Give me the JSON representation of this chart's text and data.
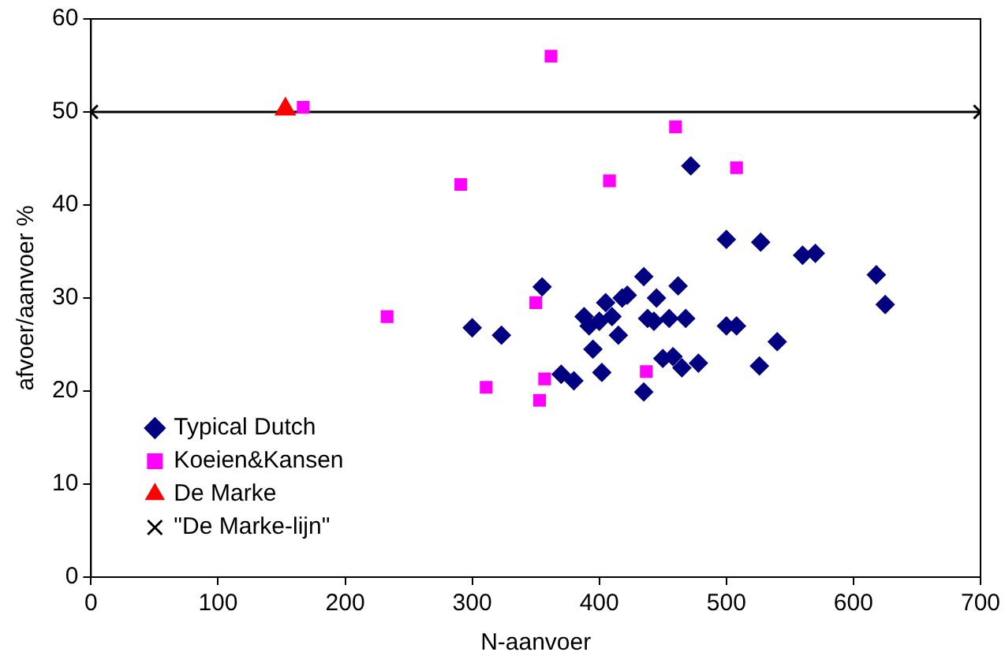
{
  "chart_data": {
    "type": "scatter",
    "xlabel": "N-aanvoer",
    "ylabel": "afvoer/aanvoer %",
    "xlim": [
      0,
      700
    ],
    "xticks": [
      0,
      100,
      200,
      300,
      400,
      500,
      600,
      700
    ],
    "ylim": [
      0,
      60
    ],
    "yticks": [
      0,
      10,
      20,
      30,
      40,
      50,
      60
    ],
    "grid": false,
    "legend": "bottom left",
    "series": [
      {
        "name": "Typical Dutch",
        "color": "#000080",
        "marker": "diamond",
        "x": [
          300,
          323,
          355,
          370,
          380,
          388,
          392,
          395,
          400,
          402,
          405,
          410,
          415,
          418,
          422,
          435,
          435,
          438,
          443,
          445,
          450,
          455,
          458,
          462,
          465,
          468,
          472,
          478,
          500,
          500,
          508,
          527,
          526,
          540,
          560,
          570,
          618,
          625
        ],
        "values": [
          26.8,
          26,
          31.2,
          21.8,
          21.1,
          28,
          27,
          24.5,
          27.5,
          22,
          29.5,
          28,
          26,
          30,
          30.3,
          32.3,
          19.9,
          27.8,
          27.5,
          30,
          23.5,
          27.8,
          23.7,
          31.3,
          22.5,
          27.8,
          44.2,
          23,
          36.3,
          27,
          27,
          36,
          22.7,
          25.3,
          34.6,
          34.8,
          32.5,
          29.3
        ]
      },
      {
        "name": "Koeien&Kansen",
        "color": "#ff00ff",
        "marker": "square",
        "x": [
          167,
          233,
          291,
          311,
          350,
          353,
          357,
          362,
          408,
          437,
          460,
          508
        ],
        "values": [
          50.5,
          28,
          42.2,
          20.4,
          29.5,
          19,
          21.3,
          56,
          42.6,
          22.1,
          48.4,
          44
        ]
      },
      {
        "name": "De Marke",
        "color": "#ff0000",
        "marker": "triangle",
        "x": [
          153
        ],
        "values": [
          50.3
        ]
      },
      {
        "name": "\"De Marke-lijn\"",
        "type": "line",
        "color": "#000000",
        "marker": "cross",
        "line_style": "solid",
        "x": [
          0,
          700
        ],
        "values": [
          50,
          50
        ]
      }
    ]
  }
}
